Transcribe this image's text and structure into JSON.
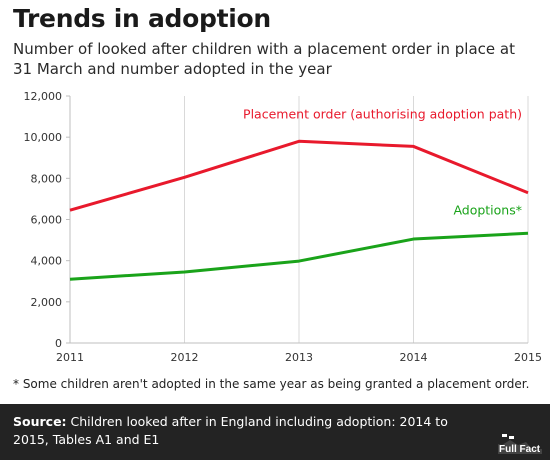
{
  "chart_data": {
    "type": "line",
    "title": "Trends in adoption",
    "subtitle": "Number of looked after children with a placement order in place at 31 March and number adopted in the year",
    "x": [
      2011,
      2012,
      2013,
      2014,
      2015
    ],
    "x_tick_labels": [
      "2011",
      "2012",
      "2013",
      "2014",
      "2015"
    ],
    "y_tick_labels": [
      "0",
      "2,000",
      "4,000",
      "6,000",
      "8,000",
      "10,000",
      "12,000"
    ],
    "ylim": [
      0,
      12000
    ],
    "xlim": [
      2011,
      2015
    ],
    "grid": "vertical lines at each year",
    "series": [
      {
        "name": "Placement order (authorising adoption path)",
        "color": "#e8192c",
        "values": [
          6450,
          8050,
          9800,
          9550,
          7300
        ]
      },
      {
        "name": "Adoptions*",
        "color": "#1aa31a",
        "values": [
          3100,
          3450,
          3980,
          5050,
          5330
        ]
      }
    ],
    "footnote": "* Some children aren't adopted in the same year as being granted a placement order.",
    "source_label": "Source:",
    "source_text": "Children looked after in England including adoption: 2014 to 2015, Tables A1 and E1",
    "logo_text": "Full Fact"
  }
}
